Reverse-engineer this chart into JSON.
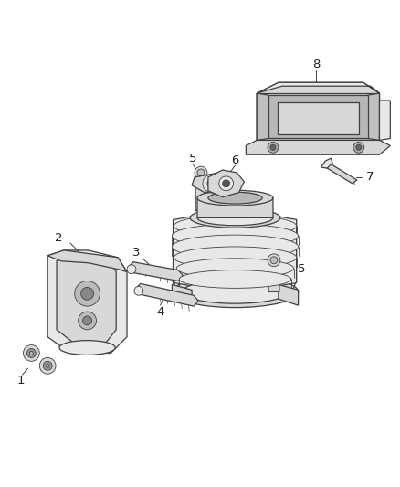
{
  "bg_color": "#ffffff",
  "line_color": "#404040",
  "label_color": "#222222",
  "figsize": [
    4.38,
    5.33
  ],
  "dpi": 100,
  "label_fontsize": 9.5,
  "lw_main": 0.9,
  "lw_thin": 0.6,
  "fill_light": "#e8e8e8",
  "fill_mid": "#d8d8d8",
  "fill_dark": "#c0c0c0"
}
